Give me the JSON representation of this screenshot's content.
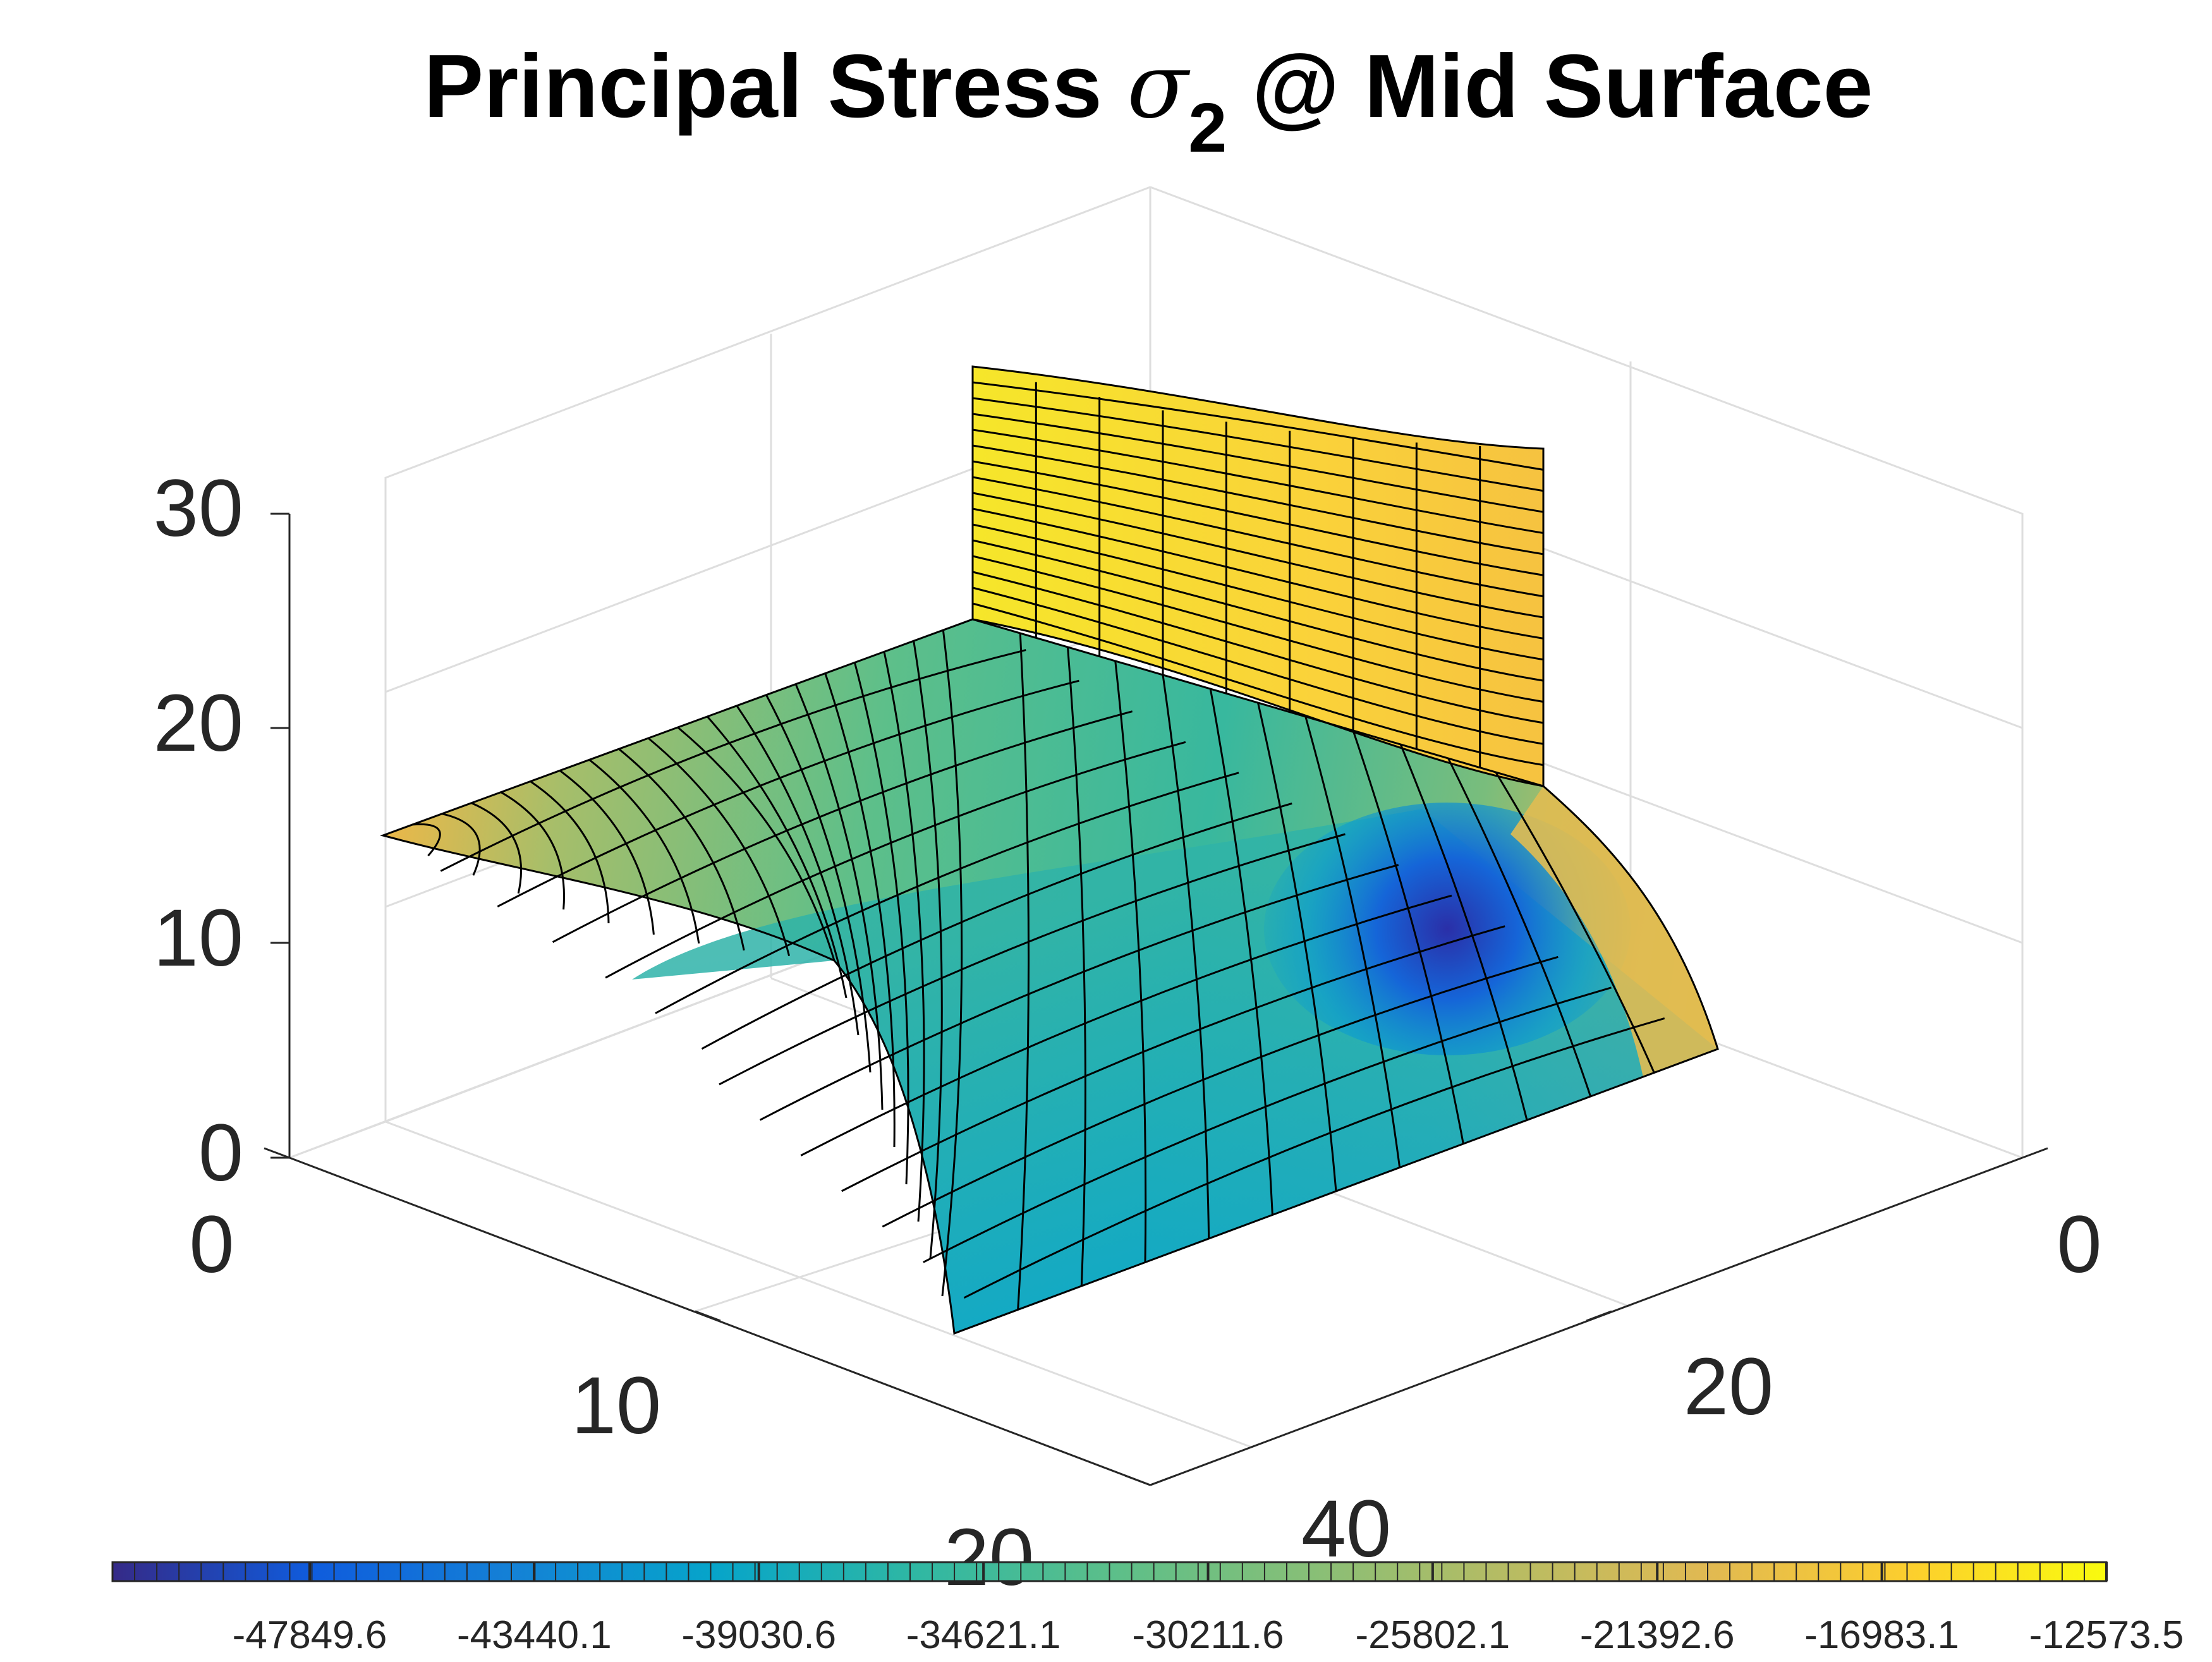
{
  "chart_data": {
    "type": "surface",
    "title": {
      "prefix": "Principal Stress ",
      "symbol": "σ",
      "subscript": "2",
      "suffix": " @ Mid Surface"
    },
    "axes": {
      "x": {
        "ticks": [
          0,
          10,
          20
        ],
        "range": [
          0,
          20
        ]
      },
      "y": {
        "ticks": [
          0,
          20,
          40
        ],
        "range": [
          0,
          40
        ]
      },
      "z": {
        "ticks": [
          0,
          10,
          20,
          30
        ],
        "range": [
          0,
          30
        ]
      }
    },
    "grid": true,
    "view": "3d-isometric",
    "surface": {
      "description_regions": [
        {
          "name": "vertical flange",
          "stress_level": "high (near -15000)"
        },
        {
          "name": "curved shell",
          "stress_level": "mid (near -28000 to -35000)"
        },
        {
          "name": "junction hot spot",
          "stress_level": "min (near -47849.6)"
        }
      ]
    },
    "colorbar": {
      "location": "bottom",
      "colormap": "parula",
      "tick_labels": [
        "-47849.6",
        "-43440.1",
        "-39030.6",
        "-34621.1",
        "-30211.6",
        "-25802.1",
        "-21392.6",
        "-16983.1",
        "-12573.5"
      ],
      "min": -47849.6,
      "max": -12573.5
    }
  }
}
